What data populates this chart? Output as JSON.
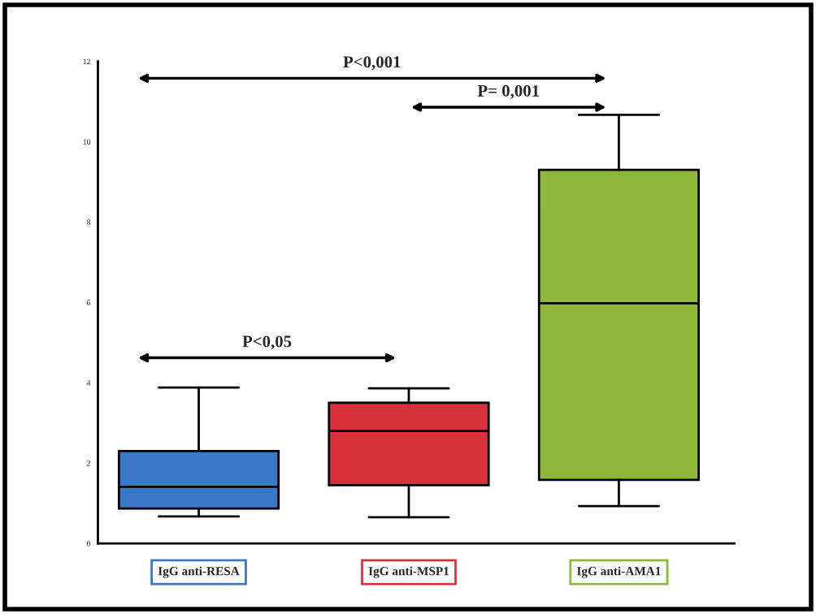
{
  "chart_data": {
    "type": "box",
    "categories": [
      "IgG anti-RESA",
      "IgG anti-MSP1",
      "IgG anti-AMA1"
    ],
    "colors": [
      "#3a78c8",
      "#d9313a",
      "#8db83a"
    ],
    "boxes": [
      {
        "low": 0.67,
        "q1": 0.87,
        "median": 1.41,
        "q3": 2.3,
        "high": 3.88
      },
      {
        "low": 0.65,
        "q1": 1.45,
        "median": 2.8,
        "q3": 3.5,
        "high": 3.86
      },
      {
        "low": 0.93,
        "q1": 1.58,
        "median": 5.98,
        "q3": 9.3,
        "high": 10.67
      }
    ],
    "ylim": [
      0,
      12
    ],
    "yticks": [
      0,
      2,
      4,
      6,
      8,
      10,
      12
    ],
    "grid": false,
    "annotations": [
      "P<0,05",
      "P= 0,001",
      "P<0,001"
    ]
  }
}
